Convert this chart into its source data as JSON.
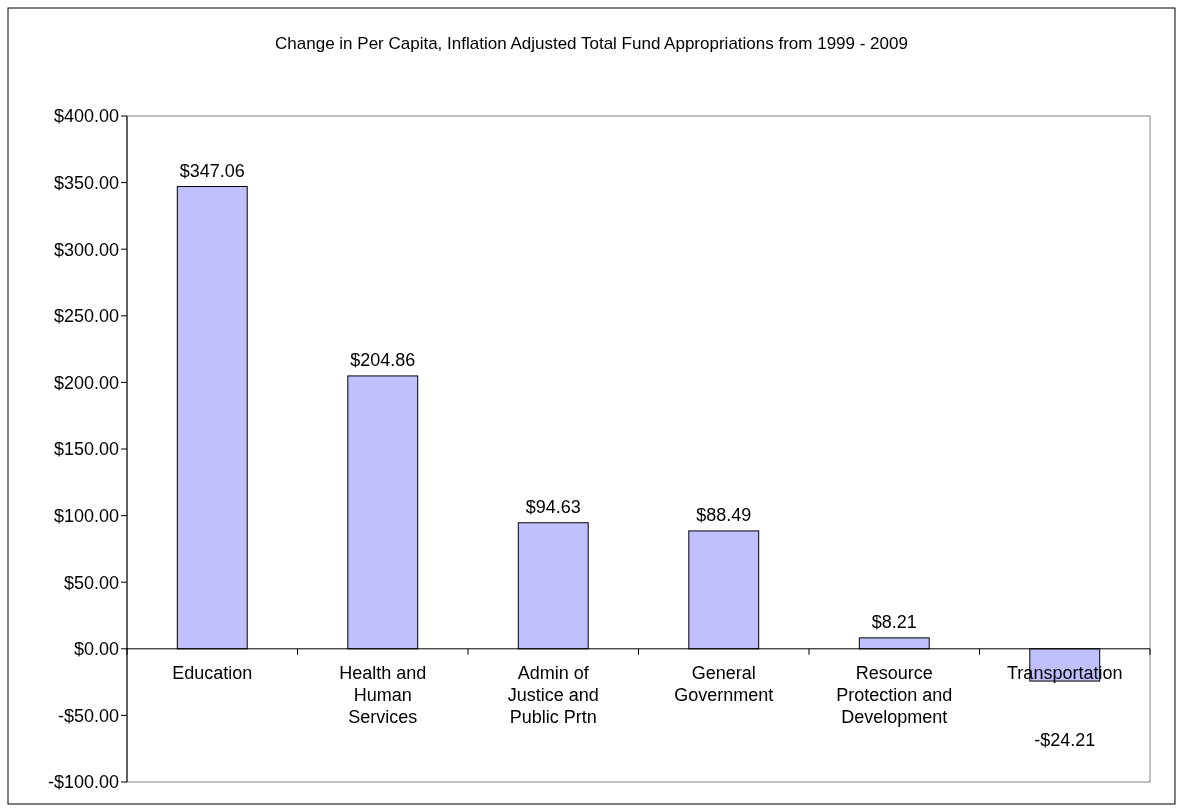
{
  "chart_data": {
    "type": "bar",
    "title": "Change in Per Capita, Inflation Adjusted Total Fund Appropriations from 1999 - 2009",
    "categories": [
      "Education",
      "Health and Human Services",
      "Admin of Justice and Public Prtn",
      "General Government",
      "Resource Protection and Development",
      "Transportation"
    ],
    "values": [
      347.06,
      204.86,
      94.63,
      88.49,
      8.21,
      -24.21
    ],
    "value_labels": [
      "$347.06",
      "$204.86",
      "$94.63",
      "$88.49",
      "$8.21",
      "-$24.21"
    ],
    "color": "#c0c0ff",
    "ylim": [
      -100,
      400
    ],
    "yticks": [
      {
        "value": -100,
        "label": "-$100.00"
      },
      {
        "value": -50,
        "label": "-$50.00"
      },
      {
        "value": 0,
        "label": "$0.00"
      },
      {
        "value": 50,
        "label": "$50.00"
      },
      {
        "value": 100,
        "label": "$100.00"
      },
      {
        "value": 150,
        "label": "$150.00"
      },
      {
        "value": 200,
        "label": "$200.00"
      },
      {
        "value": 250,
        "label": "$250.00"
      },
      {
        "value": 300,
        "label": "$300.00"
      },
      {
        "value": 350,
        "label": "$350.00"
      },
      {
        "value": 400,
        "label": "$400.00"
      }
    ],
    "grid": false
  }
}
